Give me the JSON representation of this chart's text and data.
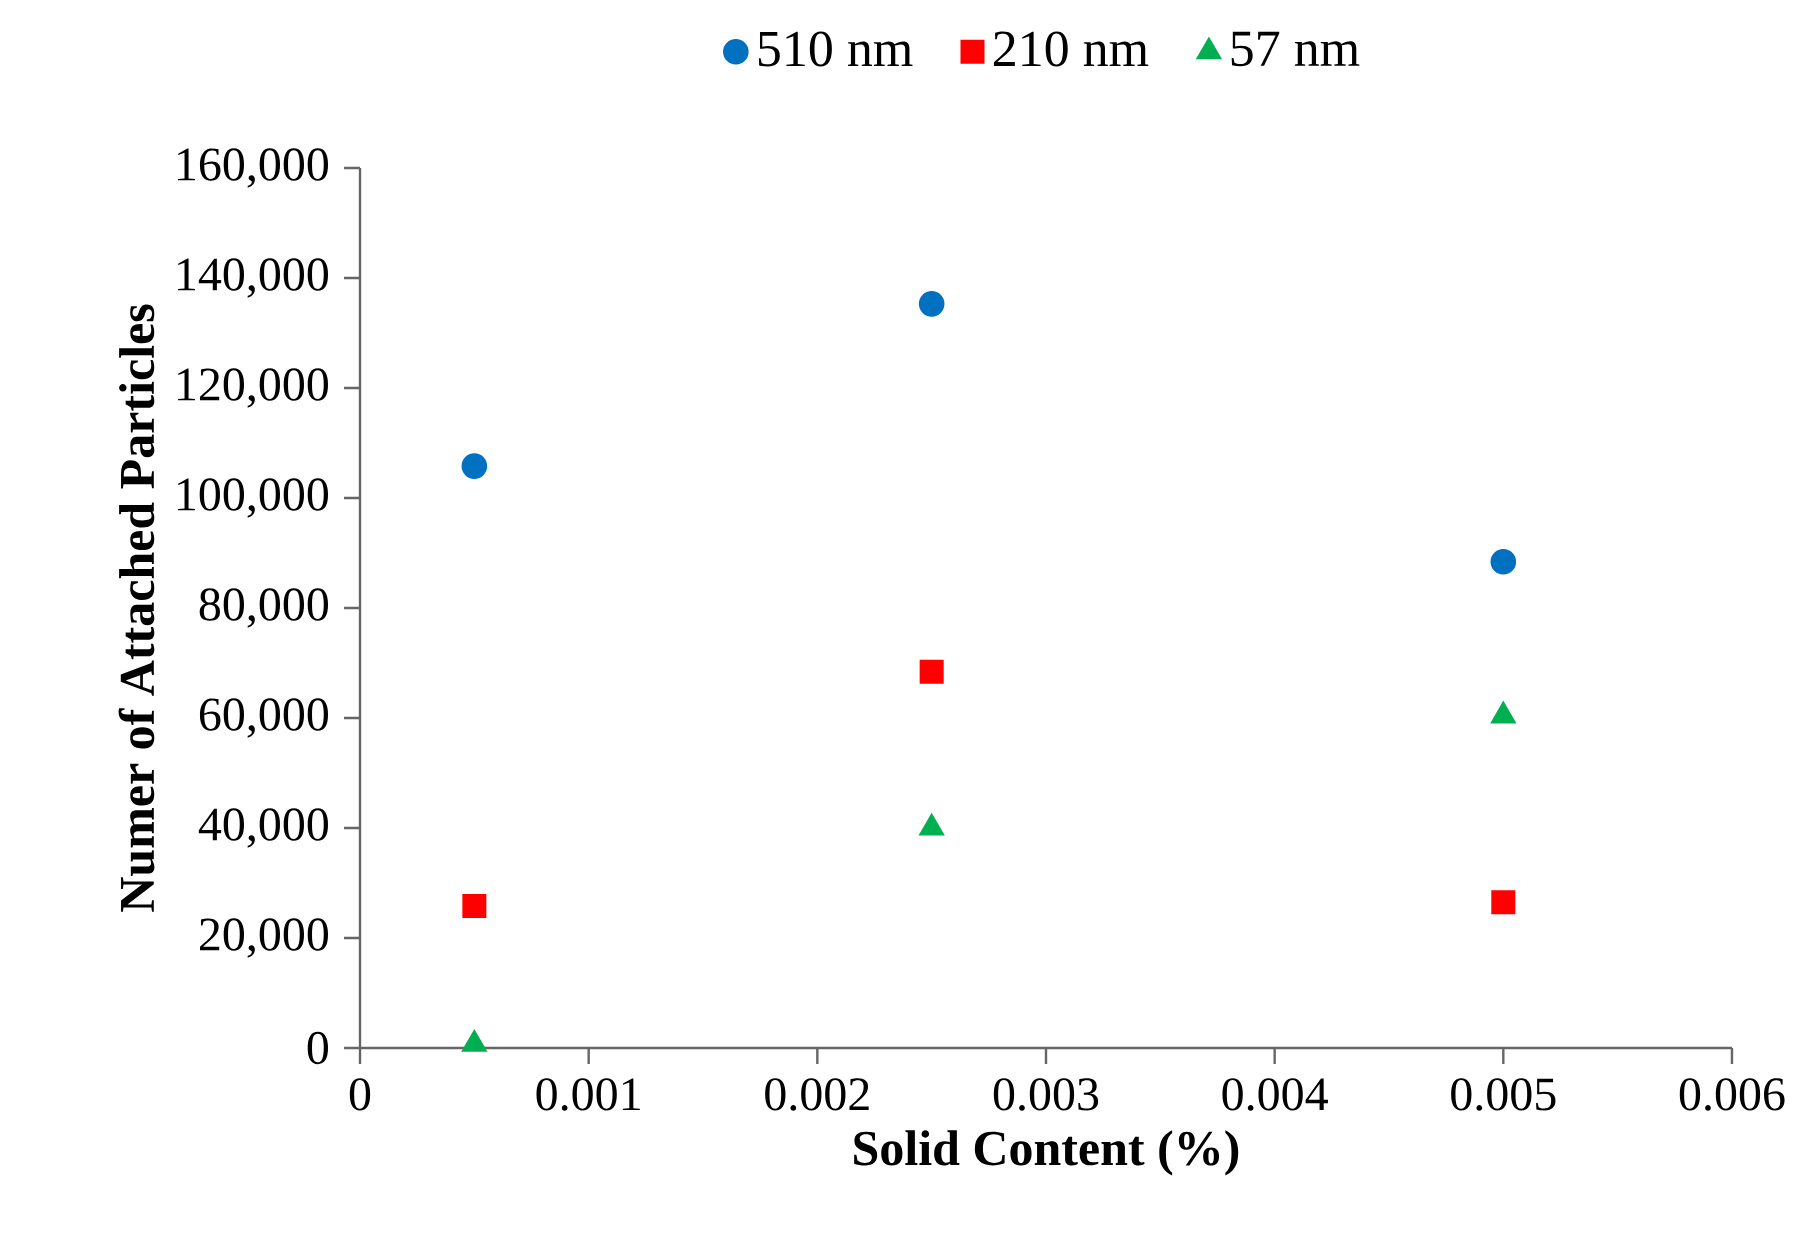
{
  "chart_data": {
    "type": "scatter",
    "xlabel": "Solid Content (%)",
    "ylabel": "Numer of Attached Particles",
    "xlim": [
      0,
      0.006
    ],
    "xticks": [
      0,
      0.001,
      0.002,
      0.003,
      0.004,
      0.005,
      0.006
    ],
    "ylim": [
      0,
      160000
    ],
    "yticks": [
      {
        "value": 0,
        "label": "0"
      },
      {
        "value": 20000,
        "label": "20,000"
      },
      {
        "value": 40000,
        "label": "40,000"
      },
      {
        "value": 60000,
        "label": "60,000"
      },
      {
        "value": 80000,
        "label": "80,000"
      },
      {
        "value": 100000,
        "label": "100,000"
      },
      {
        "value": 120000,
        "label": "120,000"
      },
      {
        "value": 140000,
        "label": "140,000"
      },
      {
        "value": 160000,
        "label": "160,000"
      }
    ],
    "x": [
      0.0005,
      0.0025,
      0.005
    ],
    "series": [
      {
        "name": "510 nm",
        "color": "#0070c0",
        "marker": "circle",
        "values": [
          105800,
          135300,
          88400
        ]
      },
      {
        "name": "210 nm",
        "color": "#ff0000",
        "marker": "square",
        "values": [
          25800,
          68400,
          26500
        ]
      },
      {
        "name": "57 nm",
        "color": "#00b050",
        "marker": "triangle",
        "values": [
          700,
          40000,
          60400
        ]
      }
    ],
    "legend": "top",
    "grid": false
  }
}
